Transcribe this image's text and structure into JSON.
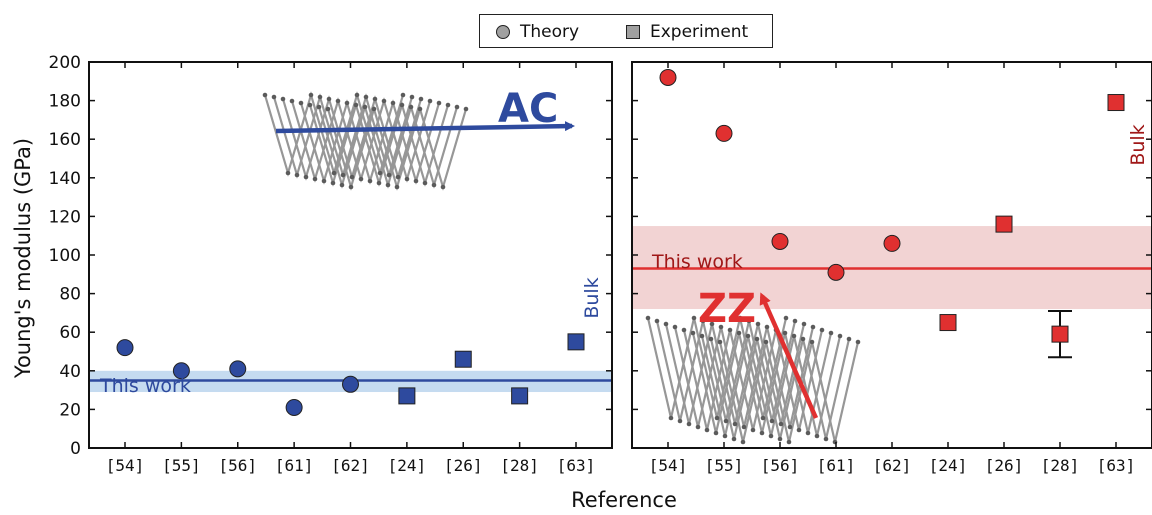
{
  "legend": {
    "theory_label": "Theory",
    "experiment_label": "Experiment"
  },
  "axes": {
    "ylabel": "Young's modulus (GPa)",
    "xlabel": "Reference",
    "ylim": [
      0,
      200
    ],
    "yticks": [
      0,
      20,
      40,
      60,
      80,
      100,
      120,
      140,
      160,
      180,
      200
    ],
    "categories": [
      "[54]",
      "[55]",
      "[56]",
      "[61]",
      "[62]",
      "[24]",
      "[26]",
      "[28]",
      "[63]"
    ]
  },
  "annotations": {
    "ac_label": "AC",
    "zz_label": "ZZ",
    "this_work_left": "This work",
    "this_work_right": "This work",
    "bulk_left": "Bulk",
    "bulk_right": "Bulk"
  },
  "colors": {
    "ac_blue": "#2e4a9e",
    "ac_band": "#c5dbf0",
    "zz_red": "#e03030",
    "zz_band": "#f2d3d3",
    "bulk_red_text": "#a01818",
    "marker_edge": "#222222"
  },
  "chart_data": [
    {
      "type": "scatter",
      "panel": "left",
      "direction": "AC",
      "categories": [
        "[54]",
        "[55]",
        "[56]",
        "[61]",
        "[62]",
        "[24]",
        "[26]",
        "[28]",
        "[63]"
      ],
      "series": [
        {
          "name": "Theory",
          "marker": "circle",
          "x": [
            "[54]",
            "[55]",
            "[56]",
            "[61]",
            "[62]"
          ],
          "values": [
            52,
            40,
            41,
            21,
            33
          ]
        },
        {
          "name": "Experiment",
          "marker": "square",
          "x": [
            "[24]",
            "[26]",
            "[28]",
            "[63]"
          ],
          "values": [
            27,
            46,
            27,
            55
          ]
        }
      ],
      "this_work": {
        "value": 35,
        "band": [
          29,
          40
        ]
      },
      "ylim": [
        0,
        200
      ]
    },
    {
      "type": "scatter",
      "panel": "right",
      "direction": "ZZ",
      "categories": [
        "[54]",
        "[55]",
        "[56]",
        "[61]",
        "[62]",
        "[24]",
        "[26]",
        "[28]",
        "[63]"
      ],
      "series": [
        {
          "name": "Theory",
          "marker": "circle",
          "x": [
            "[54]",
            "[55]",
            "[56]",
            "[61]",
            "[62]"
          ],
          "values": [
            192,
            163,
            107,
            91,
            106
          ]
        },
        {
          "name": "Experiment",
          "marker": "square",
          "x": [
            "[24]",
            "[26]",
            "[28]",
            "[63]"
          ],
          "values": [
            65,
            116,
            59,
            179
          ],
          "error_bars": {
            "[28]": [
              47,
              71
            ]
          }
        }
      ],
      "this_work": {
        "value": 93,
        "band": [
          72,
          115
        ]
      },
      "ylim": [
        0,
        200
      ]
    }
  ]
}
